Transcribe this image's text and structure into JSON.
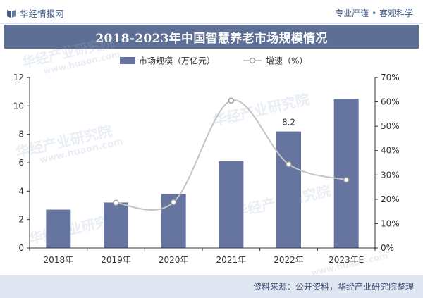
{
  "header": {
    "brand_name": "华经情报网",
    "slogan": "专业严谨 • 客观科学"
  },
  "title": "2018-2023年中国智慧养老市场规模情况",
  "watermarks": [
    {
      "text": "华经产业研究院"
    },
    {
      "text": "www.huaon.com"
    },
    {
      "text": "华经产业研究院"
    },
    {
      "text": "www.huaon.com"
    },
    {
      "text": "华经产业研究院"
    },
    {
      "text": "华经产业研究院"
    },
    {
      "text": "www.huaon.com"
    },
    {
      "text": "华经产业研究院"
    }
  ],
  "footer": {
    "source": "资料来源：公开资料，华经产业研究院整理"
  },
  "colors": {
    "bar": "#6675a0",
    "line": "#c4c4c4",
    "marker_fill": "#ffffff",
    "marker_stroke": "#9c9c9c",
    "title_bg": "#5d6f94",
    "brand": "#3d5a86"
  },
  "chart_data": {
    "type": "bar",
    "categories": [
      "2018年",
      "2019年",
      "2020年",
      "2021年",
      "2022年",
      "2023年E"
    ],
    "series": [
      {
        "name": "市场规模（万亿元）",
        "type": "bar",
        "axis": "left",
        "values": [
          2.7,
          3.2,
          3.8,
          6.1,
          8.2,
          10.5
        ]
      },
      {
        "name": "增速（%）",
        "type": "line",
        "axis": "right",
        "values": [
          null,
          18.5,
          18.8,
          60.5,
          34.4,
          28.0
        ]
      }
    ],
    "data_labels": [
      {
        "category": "2022年",
        "series": "市场规模（万亿元）",
        "text": "8.2"
      }
    ],
    "ylim": [
      0,
      12
    ],
    "y_ticks": [
      0,
      2,
      4,
      6,
      8,
      10,
      12
    ],
    "y_tick_labels": [
      "0",
      "2",
      "4",
      "6",
      "8",
      "10",
      "12"
    ],
    "y2lim": [
      0,
      70
    ],
    "y2_ticks": [
      0,
      10,
      20,
      30,
      40,
      50,
      60,
      70
    ],
    "y2_tick_labels": [
      "0%",
      "10%",
      "20%",
      "30%",
      "40%",
      "50%",
      "60%",
      "70%"
    ],
    "xlabel": "",
    "ylabel": "",
    "y2label": "",
    "grid": false,
    "legend_position": "top-center"
  }
}
